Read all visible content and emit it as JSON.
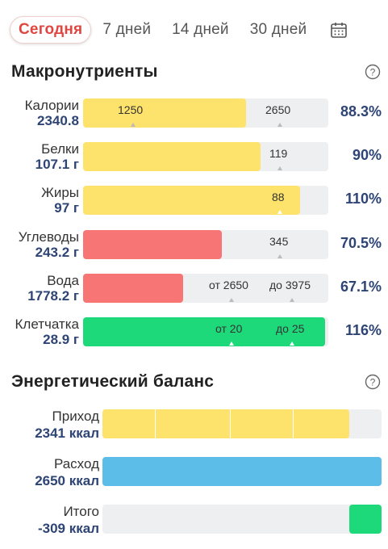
{
  "tabs": [
    {
      "label": "Сегодня",
      "active": true
    },
    {
      "label": "7 дней",
      "active": false
    },
    {
      "label": "14 дней",
      "active": false
    },
    {
      "label": "30 дней",
      "active": false
    }
  ],
  "macros": {
    "title": "Макронутриенты",
    "rows": [
      {
        "name": "Калории",
        "value": "2340.8",
        "percent": "88.3%",
        "fill_pct": 66.4,
        "color": "#fde26b",
        "marks": [
          "1250",
          "2650"
        ]
      },
      {
        "name": "Белки",
        "value": "107.1 г",
        "percent": "90%",
        "fill_pct": 72.5,
        "color": "#fde26b",
        "marks": [
          "119"
        ]
      },
      {
        "name": "Жиры",
        "value": "97 г",
        "percent": "110%",
        "fill_pct": 88.5,
        "color": "#fde26b",
        "marks": [
          "88"
        ]
      },
      {
        "name": "Углеводы",
        "value": "243.2 г",
        "percent": "70.5%",
        "fill_pct": 56.6,
        "color": "#f87575",
        "marks": [
          "345"
        ]
      },
      {
        "name": "Вода",
        "value": "1778.2 г",
        "percent": "67.1%",
        "fill_pct": 40.8,
        "color": "#f87575",
        "marks": [
          "от 2650",
          "до 3975"
        ]
      },
      {
        "name": "Клетчатка",
        "value": "28.9 г",
        "percent": "116%",
        "fill_pct": 98.7,
        "color": "#1ed97a",
        "marks": [
          "от 20",
          "до 25"
        ]
      }
    ]
  },
  "energy": {
    "title": "Энергетический баланс",
    "rows": [
      {
        "name": "Приход",
        "value": "2341 ккал",
        "fill_pct": 88.4,
        "color": "#fde26b"
      },
      {
        "name": "Расход",
        "value": "2650 ккал",
        "fill_pct": 100,
        "color": "#5bbde8"
      },
      {
        "name": "Итого",
        "value": "-309 ккал",
        "fill_pct": 11.6,
        "color": "#1ed97a"
      }
    ]
  },
  "icons": {
    "calendar": "calendar-icon",
    "help": "help-circle-icon"
  }
}
